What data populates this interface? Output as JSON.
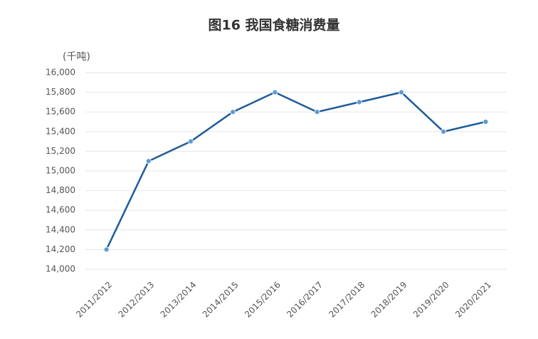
{
  "chart_data": {
    "type": "line",
    "title": "图16  我国食糖消费量",
    "y_label": "(千吨)",
    "categories": [
      "2011/2012",
      "2012/2013",
      "2013/2014",
      "2014/2015",
      "2015/2016",
      "2016/2017",
      "2017/2018",
      "2018/2019",
      "2019/2020",
      "2020/2021"
    ],
    "values": [
      14200,
      15100,
      15300,
      15600,
      15800,
      15600,
      15700,
      15800,
      15400,
      15500
    ],
    "color": "#1f5c99",
    "marker_color": "#5b9bd5",
    "ylim": [
      14000,
      16000
    ],
    "yticks": [
      {
        "value": 14000,
        "label": "14,000"
      },
      {
        "value": 14200,
        "label": "14,200"
      },
      {
        "value": 14400,
        "label": "14,400"
      },
      {
        "value": 14600,
        "label": "14,600"
      },
      {
        "value": 14800,
        "label": "14,800"
      },
      {
        "value": 15000,
        "label": "15,000"
      },
      {
        "value": 15200,
        "label": "15,200"
      },
      {
        "value": 15400,
        "label": "15,400"
      },
      {
        "value": 15600,
        "label": "15,600"
      },
      {
        "value": 15800,
        "label": "15,800"
      },
      {
        "value": 16000,
        "label": "16,000"
      }
    ],
    "grid": true
  }
}
